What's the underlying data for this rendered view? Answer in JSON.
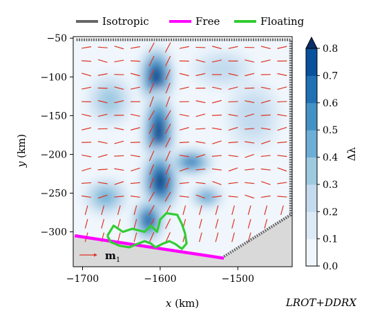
{
  "chart_data": {
    "type": "heatmap",
    "title": "",
    "xlabel_var": "x",
    "xlabel_unit": "(km)",
    "ylabel_var": "y",
    "ylabel_unit": "(km)",
    "xlim": [
      -1712,
      -1430
    ],
    "ylim": [
      -345,
      -48
    ],
    "xticks": [
      -1700,
      -1600,
      -1500
    ],
    "xtick_labels": [
      "−1700",
      "−1600",
      "−1500"
    ],
    "yticks": [
      -50,
      -100,
      -150,
      -200,
      -250,
      -300
    ],
    "ytick_labels": [
      "−50",
      "−100",
      "−150",
      "−200",
      "−250",
      "−300"
    ],
    "legend": {
      "placement": "top",
      "entries": [
        {
          "name": "Isotropic",
          "color": "#666666"
        },
        {
          "name": "Free",
          "color": "#ff00ff"
        },
        {
          "name": "Floating",
          "color": "#33cc33"
        }
      ]
    },
    "colorbar": {
      "label": "Δλ",
      "range": [
        0,
        0.8
      ],
      "ticks": [
        0.0,
        0.1,
        0.2,
        0.3,
        0.4,
        0.5,
        0.6,
        0.7,
        0.8
      ],
      "tick_labels": [
        "0.0",
        "0.1",
        "0.2",
        "0.3",
        "0.4",
        "0.5",
        "0.6",
        "0.7",
        "0.8"
      ],
      "colors": [
        "#f0f6fc",
        "#dceaf6",
        "#c4dbef",
        "#9ecae1",
        "#6caed6",
        "#4392c6",
        "#2070b4",
        "#08519c",
        "#0a3069"
      ],
      "extend": "max"
    },
    "quiver_key": {
      "label": "m",
      "subscript": "1",
      "color": "#dd3322"
    },
    "model_label": "LROT+DDRX",
    "boundaries": {
      "isotropic": [
        [
          -1708,
          -52
        ],
        [
          -1432,
          -52
        ],
        [
          -1432,
          -278
        ],
        [
          -1518,
          -332
        ]
      ],
      "free": [
        [
          -1710,
          -305
        ],
        [
          -1518,
          -334
        ]
      ],
      "floating": [
        [
          -1668,
          -305
        ],
        [
          -1660,
          -292
        ],
        [
          -1648,
          -300
        ],
        [
          -1636,
          -296
        ],
        [
          -1620,
          -300
        ],
        [
          -1612,
          -292
        ],
        [
          -1604,
          -300
        ],
        [
          -1600,
          -284
        ],
        [
          -1592,
          -276
        ],
        [
          -1578,
          -278
        ],
        [
          -1572,
          -290
        ],
        [
          -1568,
          -302
        ],
        [
          -1566,
          -315
        ],
        [
          -1572,
          -322
        ],
        [
          -1580,
          -316
        ],
        [
          -1588,
          -312
        ],
        [
          -1596,
          -315
        ],
        [
          -1606,
          -320
        ],
        [
          -1612,
          -315
        ],
        [
          -1620,
          -312
        ],
        [
          -1628,
          -315
        ],
        [
          -1640,
          -320
        ],
        [
          -1652,
          -318
        ],
        [
          -1664,
          -313
        ],
        [
          -1668,
          -305
        ]
      ]
    },
    "delta_lambda_blobs": [
      {
        "x": -1605,
        "y": -100,
        "rx": 24,
        "ry": 42,
        "value": 0.78
      },
      {
        "x": -1602,
        "y": -170,
        "rx": 22,
        "ry": 55,
        "value": 0.82
      },
      {
        "x": -1600,
        "y": -235,
        "rx": 26,
        "ry": 45,
        "value": 0.78
      },
      {
        "x": -1615,
        "y": -285,
        "rx": 22,
        "ry": 30,
        "value": 0.72
      },
      {
        "x": -1560,
        "y": -210,
        "rx": 30,
        "ry": 18,
        "value": 0.55
      },
      {
        "x": -1540,
        "y": -255,
        "rx": 22,
        "ry": 15,
        "value": 0.5
      },
      {
        "x": -1670,
        "y": -255,
        "rx": 30,
        "ry": 25,
        "value": 0.38
      },
      {
        "x": -1665,
        "y": -130,
        "rx": 30,
        "ry": 35,
        "value": 0.28
      },
      {
        "x": -1480,
        "y": -150,
        "rx": 35,
        "ry": 45,
        "value": 0.18
      },
      {
        "x": -1520,
        "y": -90,
        "rx": 40,
        "ry": 25,
        "value": 0.2
      }
    ]
  }
}
